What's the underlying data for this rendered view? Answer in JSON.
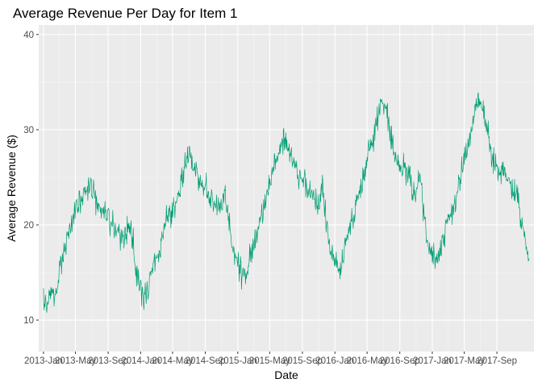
{
  "chart_data": {
    "type": "line",
    "title": "Average Revenue Per Day for Item 1",
    "xlabel": "Date",
    "ylabel": "Average Revenue ($)",
    "x_type": "date",
    "x_range": [
      "2012-12-14",
      "2018-01-18"
    ],
    "ylim": [
      6.7,
      41.0
    ],
    "y_ticks": [
      10,
      20,
      30,
      40
    ],
    "x_ticks": [
      {
        "date": "2013-01-01",
        "label": "2013-Jan"
      },
      {
        "date": "2013-05-01",
        "label": "2013-May"
      },
      {
        "date": "2013-09-01",
        "label": "2013-Sep"
      },
      {
        "date": "2014-01-01",
        "label": "2014-Jan"
      },
      {
        "date": "2014-05-01",
        "label": "2014-May"
      },
      {
        "date": "2014-09-01",
        "label": "2014-Sep"
      },
      {
        "date": "2015-01-01",
        "label": "2015-Jan"
      },
      {
        "date": "2015-05-01",
        "label": "2015-May"
      },
      {
        "date": "2015-09-01",
        "label": "2015-Sep"
      },
      {
        "date": "2016-01-01",
        "label": "2016-Jan"
      },
      {
        "date": "2016-05-01",
        "label": "2016-May"
      },
      {
        "date": "2016-09-01",
        "label": "2016-Sep"
      },
      {
        "date": "2017-01-01",
        "label": "2017-Jan"
      },
      {
        "date": "2017-05-01",
        "label": "2017-May"
      },
      {
        "date": "2017-09-01",
        "label": "2017-Sep"
      }
    ],
    "grid": true,
    "legend": "none",
    "colors": {
      "line": "#009E73",
      "panel": "#EBEBEB",
      "grid_major": "#FFFFFF",
      "grid_minor": "#F5F5F5",
      "tick_text": "#4D4D4D",
      "text": "#000000"
    },
    "series": [
      {
        "x": [
          "2013-01-01",
          "2013-01-15",
          "2013-02-01",
          "2013-02-15",
          "2013-03-01",
          "2013-03-15",
          "2013-04-01",
          "2013-04-15",
          "2013-05-01",
          "2013-05-15",
          "2013-06-01",
          "2013-06-15",
          "2013-07-01",
          "2013-07-15",
          "2013-08-01",
          "2013-08-15",
          "2013-09-01",
          "2013-09-15",
          "2013-10-01",
          "2013-10-15",
          "2013-11-01",
          "2013-11-15",
          "2013-12-01",
          "2013-12-15",
          "2014-01-01",
          "2014-01-15",
          "2014-02-01",
          "2014-02-15",
          "2014-03-01",
          "2014-03-15",
          "2014-04-01",
          "2014-04-15",
          "2014-05-01",
          "2014-05-15",
          "2014-06-01",
          "2014-06-15",
          "2014-07-01",
          "2014-07-15",
          "2014-08-01",
          "2014-08-15",
          "2014-09-01",
          "2014-09-15",
          "2014-10-01",
          "2014-10-15",
          "2014-11-01",
          "2014-11-15",
          "2014-12-01",
          "2014-12-15",
          "2015-01-01",
          "2015-01-15",
          "2015-02-01",
          "2015-02-15",
          "2015-03-01",
          "2015-03-15",
          "2015-04-01",
          "2015-04-15",
          "2015-05-01",
          "2015-05-15",
          "2015-06-01",
          "2015-06-15",
          "2015-07-01",
          "2015-07-15",
          "2015-08-01",
          "2015-08-15",
          "2015-09-01",
          "2015-09-15",
          "2015-10-01",
          "2015-10-15",
          "2015-11-01",
          "2015-11-15",
          "2015-12-01",
          "2015-12-15",
          "2016-01-01",
          "2016-01-15",
          "2016-02-01",
          "2016-02-15",
          "2016-03-01",
          "2016-03-15",
          "2016-04-01",
          "2016-04-15",
          "2016-05-01",
          "2016-05-15",
          "2016-06-01",
          "2016-06-15",
          "2016-07-01",
          "2016-07-15",
          "2016-08-01",
          "2016-08-15",
          "2016-09-01",
          "2016-09-15",
          "2016-10-01",
          "2016-10-15",
          "2016-11-01",
          "2016-11-15",
          "2016-12-01",
          "2016-12-15",
          "2017-01-01",
          "2017-01-15",
          "2017-02-01",
          "2017-02-15",
          "2017-03-01",
          "2017-03-15",
          "2017-04-01",
          "2017-04-15",
          "2017-05-01",
          "2017-05-15",
          "2017-06-01",
          "2017-06-15",
          "2017-07-01",
          "2017-07-15",
          "2017-08-01",
          "2017-08-15",
          "2017-09-01",
          "2017-09-15",
          "2017-10-01",
          "2017-10-15",
          "2017-11-01",
          "2017-11-15",
          "2017-12-01",
          "2017-12-31"
        ],
        "y": [
          12.5,
          11.0,
          13.0,
          12.0,
          15.5,
          17.0,
          18.5,
          20.0,
          21.5,
          22.5,
          23.5,
          24.0,
          24.5,
          22.5,
          22.0,
          21.0,
          21.0,
          20.0,
          19.5,
          19.0,
          18.5,
          20.0,
          19.0,
          15.0,
          13.0,
          12.5,
          14.0,
          15.5,
          16.5,
          17.5,
          20.0,
          21.0,
          21.5,
          22.5,
          24.5,
          26.0,
          27.5,
          26.5,
          25.5,
          24.0,
          24.0,
          23.0,
          22.5,
          22.0,
          21.5,
          23.0,
          20.0,
          17.0,
          16.0,
          15.0,
          14.5,
          16.5,
          18.0,
          19.5,
          21.5,
          22.5,
          24.0,
          25.5,
          27.0,
          28.5,
          29.0,
          27.5,
          26.5,
          25.5,
          25.0,
          24.0,
          23.5,
          23.0,
          22.0,
          24.5,
          20.0,
          17.0,
          16.5,
          15.5,
          16.5,
          18.5,
          20.0,
          21.5,
          23.0,
          25.0,
          27.0,
          28.5,
          30.0,
          32.0,
          33.0,
          31.5,
          29.0,
          27.0,
          26.5,
          26.0,
          25.0,
          24.0,
          23.5,
          25.5,
          21.0,
          18.0,
          17.5,
          16.5,
          17.0,
          19.0,
          20.5,
          21.5,
          23.0,
          25.0,
          27.0,
          28.5,
          30.0,
          32.5,
          33.5,
          31.5,
          29.0,
          27.0,
          26.0,
          25.5,
          25.0,
          24.5,
          23.0,
          24.0,
          20.0,
          16.5
        ]
      }
    ]
  }
}
